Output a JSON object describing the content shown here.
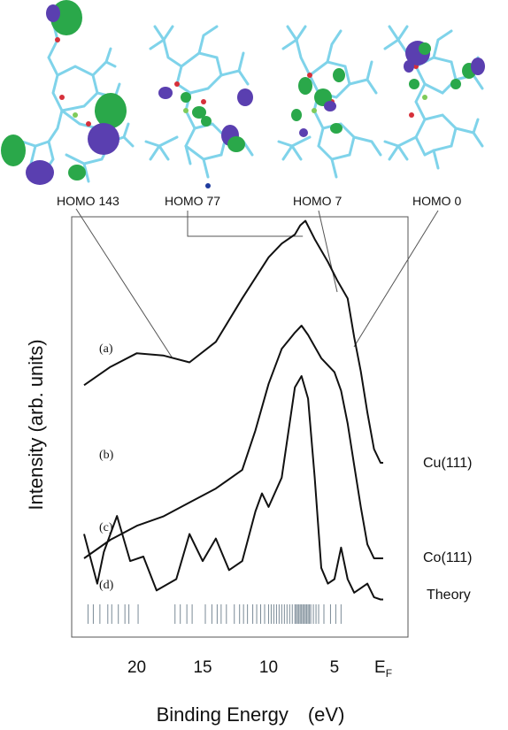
{
  "chart_data": {
    "type": "line",
    "xlabel": "Binding Energy",
    "xunit": "(eV)",
    "ylabel": "Intensity (arb. units)",
    "x_reversed": true,
    "xlim": [
      24,
      0
    ],
    "x_ticks": [
      {
        "value": 20,
        "label": "20"
      },
      {
        "value": 15,
        "label": "15"
      },
      {
        "value": 10,
        "label": "10"
      },
      {
        "value": 5,
        "label": "5"
      }
    ],
    "fermi_label": "E",
    "fermi_sub": "F",
    "fermi_value": 1.3,
    "orbital_labels": [
      {
        "label": "HOMO 143",
        "energy": 21.5
      },
      {
        "label": "HOMO 77",
        "energy": 7.4
      },
      {
        "label": "HOMO 7",
        "energy": 4.6
      },
      {
        "label": "HOMO 0",
        "energy": 3.5
      }
    ],
    "series": [
      {
        "tag": "(a)",
        "side_label": "Cu(111)",
        "x": [
          24.0,
          22.0,
          20.0,
          18.0,
          16.0,
          14.0,
          12.0,
          10.0,
          9.0,
          8.0,
          7.6,
          7.2,
          6.5,
          5.5,
          4.8,
          4.0,
          3.5,
          3.0,
          2.5,
          2.0,
          1.5,
          1.3
        ],
        "y": [
          0.34,
          0.42,
          0.48,
          0.47,
          0.44,
          0.53,
          0.72,
          0.9,
          0.96,
          1.0,
          1.04,
          1.06,
          0.98,
          0.88,
          0.8,
          0.72,
          0.55,
          0.4,
          0.22,
          0.06,
          0.0,
          0.0
        ]
      },
      {
        "tag": "(b)",
        "side_label": "Co(111)",
        "x": [
          24.0,
          22.0,
          20.0,
          18.0,
          16.0,
          14.0,
          12.0,
          11.0,
          10.0,
          9.0,
          8.0,
          7.5,
          7.0,
          6.0,
          5.0,
          4.5,
          4.0,
          3.5,
          3.0,
          2.5,
          2.0,
          1.5,
          1.3
        ],
        "y": [
          0.0,
          0.08,
          0.14,
          0.18,
          0.24,
          0.3,
          0.38,
          0.55,
          0.75,
          0.9,
          0.97,
          1.0,
          0.96,
          0.86,
          0.8,
          0.72,
          0.58,
          0.4,
          0.22,
          0.06,
          0.0,
          0.0,
          0.0
        ]
      },
      {
        "tag": "(c)",
        "side_label": "Theory",
        "x": [
          24.0,
          23.0,
          22.5,
          21.5,
          20.5,
          19.5,
          18.5,
          17.0,
          16.0,
          15.0,
          14.0,
          13.0,
          12.0,
          11.0,
          10.5,
          10.0,
          9.0,
          8.0,
          7.5,
          7.0,
          6.5,
          6.0,
          5.5,
          5.0,
          4.5,
          4.0,
          3.5,
          3.0,
          2.5,
          2.0,
          1.5,
          1.3
        ],
        "y": [
          0.3,
          0.08,
          0.22,
          0.38,
          0.18,
          0.2,
          0.05,
          0.1,
          0.3,
          0.18,
          0.28,
          0.14,
          0.18,
          0.4,
          0.48,
          0.42,
          0.55,
          0.95,
          1.0,
          0.9,
          0.55,
          0.15,
          0.08,
          0.1,
          0.24,
          0.1,
          0.04,
          0.06,
          0.08,
          0.02,
          0.01,
          0.01
        ]
      }
    ],
    "theory_tag": "(d)",
    "theory_levels": [
      23.7,
      23.3,
      22.8,
      22.2,
      21.9,
      21.4,
      20.9,
      20.6,
      19.9,
      17.1,
      16.7,
      16.2,
      15.8,
      14.8,
      14.3,
      13.9,
      13.6,
      13.2,
      12.6,
      12.2,
      11.9,
      11.6,
      11.2,
      10.9,
      10.6,
      10.3,
      10.0,
      9.8,
      9.6,
      9.4,
      9.2,
      9.0,
      8.8,
      8.6,
      8.4,
      8.2,
      8.0,
      7.9,
      7.8,
      7.7,
      7.6,
      7.5,
      7.4,
      7.3,
      7.2,
      7.1,
      7.0,
      6.9,
      6.8,
      6.6,
      6.4,
      6.2,
      5.8,
      5.3,
      4.9,
      4.5
    ]
  },
  "colors": {
    "line": "#111111",
    "frame": "#555555",
    "molecule_bond": "#7fd3ea",
    "lobe_green": "#2aa84a",
    "lobe_purple": "#5a3fb0",
    "atom_red": "#d6303a",
    "atom_blue": "#1f3c9e",
    "metal_green": "#7ecb5a",
    "level_line": "#7a8a96"
  }
}
